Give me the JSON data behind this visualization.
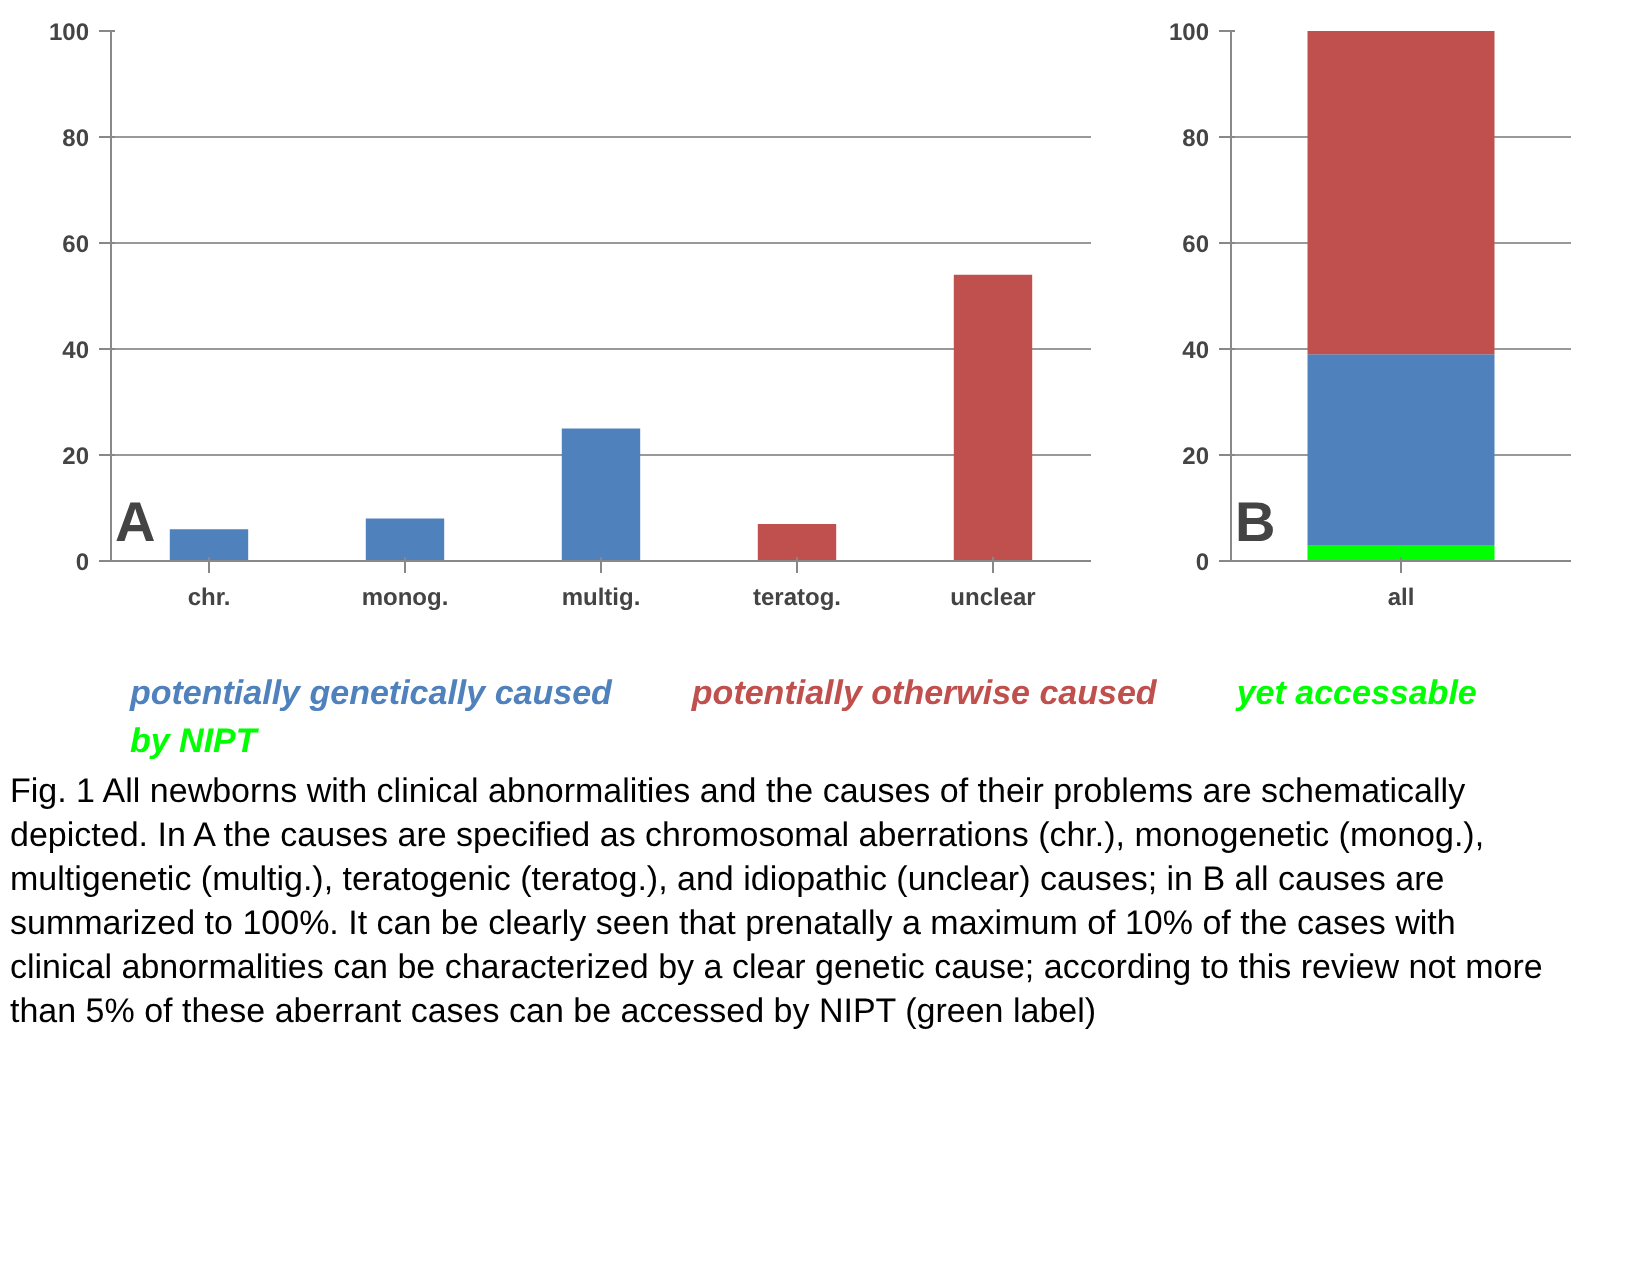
{
  "chart_data": [
    {
      "type": "bar",
      "categories": [
        "chr.",
        "monog.",
        "multig.",
        "teratog.",
        "unclear"
      ],
      "values": [
        6,
        8,
        25,
        7,
        54
      ],
      "colors": [
        "#4f81bd",
        "#4f81bd",
        "#4f81bd",
        "#c0504d",
        "#c0504d"
      ],
      "ylim": [
        0,
        100
      ],
      "yticks": [
        0,
        20,
        40,
        60,
        80,
        100
      ],
      "grid": "y",
      "annotations": [
        "A"
      ]
    },
    {
      "type": "bar",
      "stacked": true,
      "categories": [
        "all"
      ],
      "series": [
        {
          "name": "yet accessable by NIPT",
          "color": "#00ff00",
          "values": [
            3
          ]
        },
        {
          "name": "potentially genetically caused",
          "color": "#4f81bd",
          "values": [
            36
          ]
        },
        {
          "name": "potentially otherwise caused",
          "color": "#c0504d",
          "values": [
            61
          ]
        }
      ],
      "ylim": [
        0,
        100
      ],
      "yticks": [
        0,
        20,
        40,
        60,
        80,
        100
      ],
      "grid": "y",
      "legend": "bottom",
      "annotations": [
        "B",
        "Fig. 1  All newborns with clinical abnormalities and the causes of their problems are schematically depicted. In A the causes are specified as chromosomal aberrations (chr.), monogenetic (monog.), multigenetic (multig.), teratogenic (teratog.), and idiopathic (unclear) causes; in B all causes are summarized to 100%. It can be clearly seen that prenatally a maximum of 10% of the cases with clinical abnormalities can be characterized by a clear genetic cause; according to this review not more than 5% of these aberrant cases can be accessed by NIPT (green label)"
      ]
    }
  ]
}
